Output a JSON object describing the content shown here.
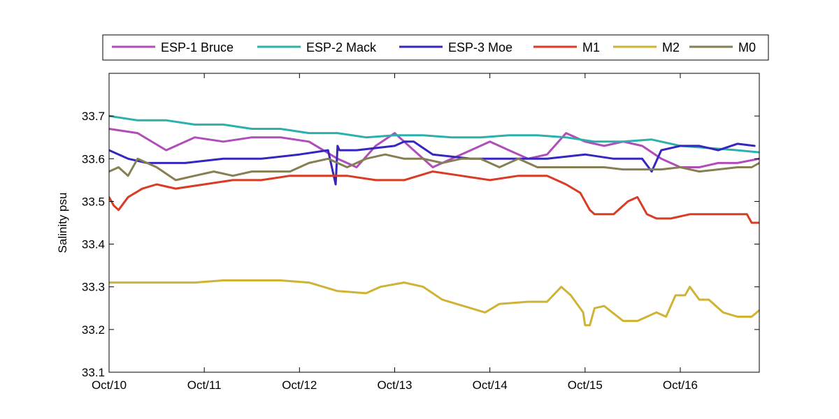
{
  "chart_data": {
    "type": "line",
    "title": "",
    "xlabel": "",
    "ylabel": "Salinity psu",
    "x_ticks": [
      "Oct/10",
      "Oct/11",
      "Oct/12",
      "Oct/13",
      "Oct/14",
      "Oct/15",
      "Oct/16"
    ],
    "xlim": [
      "Oct/10",
      "Oct/16 +0.83"
    ],
    "ylim": [
      33.1,
      33.8
    ],
    "y_ticks": [
      "33.1",
      "33.2",
      "33.3",
      "33.4",
      "33.5",
      "33.6",
      "33.7"
    ],
    "grid": false,
    "legend": "top, horizontal, outside plot",
    "x_unit": "day of October",
    "series": [
      {
        "name": "ESP-1 Bruce",
        "color": "#b04db8",
        "x": [
          10.0,
          10.3,
          10.6,
          10.9,
          11.2,
          11.5,
          11.8,
          12.1,
          12.4,
          12.6,
          12.8,
          13.0,
          13.2,
          13.4,
          13.6,
          13.8,
          14.0,
          14.2,
          14.4,
          14.6,
          14.8,
          15.0,
          15.2,
          15.4,
          15.6,
          15.8,
          16.0,
          16.2,
          16.4,
          16.6,
          16.83
        ],
        "y": [
          33.67,
          33.66,
          33.62,
          33.65,
          33.64,
          33.65,
          33.65,
          33.64,
          33.6,
          33.58,
          33.63,
          33.66,
          33.62,
          33.58,
          33.6,
          33.62,
          33.64,
          33.62,
          33.6,
          33.61,
          33.66,
          33.64,
          33.63,
          33.64,
          33.63,
          33.6,
          33.58,
          33.58,
          33.59,
          33.59,
          33.6
        ]
      },
      {
        "name": "ESP-2 Mack",
        "color": "#2bb1ad",
        "x": [
          10.0,
          10.3,
          10.6,
          10.9,
          11.2,
          11.5,
          11.8,
          12.1,
          12.4,
          12.7,
          13.0,
          13.3,
          13.6,
          13.9,
          14.2,
          14.5,
          14.8,
          15.1,
          15.4,
          15.7,
          16.0,
          16.3,
          16.6,
          16.83
        ],
        "y": [
          33.7,
          33.69,
          33.69,
          33.68,
          33.68,
          33.67,
          33.67,
          33.66,
          33.66,
          33.65,
          33.655,
          33.655,
          33.65,
          33.65,
          33.655,
          33.655,
          33.65,
          33.64,
          33.64,
          33.645,
          33.63,
          33.625,
          33.62,
          33.615
        ]
      },
      {
        "name": "ESP-3 Moe",
        "color": "#3526c0",
        "x": [
          10.0,
          10.2,
          10.4,
          10.8,
          11.2,
          11.6,
          12.0,
          12.3,
          12.38,
          12.4,
          12.42,
          12.6,
          13.0,
          13.1,
          13.2,
          13.4,
          13.8,
          14.2,
          14.6,
          15.0,
          15.3,
          15.6,
          15.7,
          15.8,
          16.0,
          16.2,
          16.4,
          16.6,
          16.78
        ],
        "y": [
          33.62,
          33.6,
          33.59,
          33.59,
          33.6,
          33.6,
          33.61,
          33.62,
          33.54,
          33.63,
          33.62,
          33.62,
          33.63,
          33.64,
          33.64,
          33.61,
          33.6,
          33.6,
          33.6,
          33.61,
          33.6,
          33.6,
          33.57,
          33.62,
          33.63,
          33.63,
          33.62,
          33.635,
          33.63
        ]
      },
      {
        "name": "M1",
        "color": "#d93b24",
        "x": [
          10.0,
          10.05,
          10.1,
          10.2,
          10.35,
          10.5,
          10.7,
          11.0,
          11.3,
          11.6,
          11.9,
          12.2,
          12.5,
          12.8,
          13.1,
          13.4,
          13.7,
          14.0,
          14.3,
          14.6,
          14.8,
          14.95,
          15.05,
          15.1,
          15.3,
          15.45,
          15.55,
          15.65,
          15.75,
          15.9,
          16.1,
          16.3,
          16.5,
          16.7,
          16.75,
          16.83
        ],
        "y": [
          33.51,
          33.49,
          33.48,
          33.51,
          33.53,
          33.54,
          33.53,
          33.54,
          33.55,
          33.55,
          33.56,
          33.56,
          33.56,
          33.55,
          33.55,
          33.57,
          33.56,
          33.55,
          33.56,
          33.56,
          33.54,
          33.52,
          33.48,
          33.47,
          33.47,
          33.5,
          33.51,
          33.47,
          33.46,
          33.46,
          33.47,
          33.47,
          33.47,
          33.47,
          33.45,
          33.45
        ]
      },
      {
        "name": "M2",
        "color": "#d0b334",
        "x": [
          10.0,
          10.3,
          10.6,
          10.9,
          11.2,
          11.5,
          11.8,
          12.1,
          12.4,
          12.7,
          12.85,
          13.1,
          13.3,
          13.5,
          13.8,
          13.95,
          14.1,
          14.4,
          14.6,
          14.75,
          14.85,
          14.98,
          15.0,
          15.05,
          15.1,
          15.2,
          15.4,
          15.55,
          15.75,
          15.85,
          15.95,
          16.05,
          16.1,
          16.2,
          16.3,
          16.45,
          16.6,
          16.75,
          16.83
        ],
        "y": [
          33.31,
          33.31,
          33.31,
          33.31,
          33.315,
          33.315,
          33.315,
          33.31,
          33.29,
          33.285,
          33.3,
          33.31,
          33.3,
          33.27,
          33.25,
          33.24,
          33.26,
          33.265,
          33.265,
          33.3,
          33.28,
          33.24,
          33.21,
          33.21,
          33.25,
          33.255,
          33.22,
          33.22,
          33.24,
          33.23,
          33.28,
          33.28,
          33.3,
          33.27,
          33.27,
          33.24,
          33.23,
          33.23,
          33.245
        ]
      },
      {
        "name": "M0",
        "color": "#857f52",
        "x": [
          10.0,
          10.1,
          10.2,
          10.3,
          10.5,
          10.7,
          10.9,
          11.1,
          11.3,
          11.5,
          11.7,
          11.9,
          12.1,
          12.3,
          12.5,
          12.7,
          12.9,
          13.1,
          13.3,
          13.5,
          13.7,
          13.9,
          14.1,
          14.3,
          14.5,
          14.7,
          14.85,
          15.0,
          15.2,
          15.4,
          15.6,
          15.8,
          16.0,
          16.2,
          16.4,
          16.6,
          16.75,
          16.83
        ],
        "y": [
          33.57,
          33.58,
          33.56,
          33.6,
          33.58,
          33.55,
          33.56,
          33.57,
          33.56,
          33.57,
          33.57,
          33.57,
          33.59,
          33.6,
          33.58,
          33.6,
          33.61,
          33.6,
          33.6,
          33.59,
          33.6,
          33.6,
          33.58,
          33.6,
          33.58,
          33.58,
          33.58,
          33.58,
          33.58,
          33.575,
          33.575,
          33.575,
          33.58,
          33.57,
          33.575,
          33.58,
          33.58,
          33.59
        ]
      }
    ]
  }
}
